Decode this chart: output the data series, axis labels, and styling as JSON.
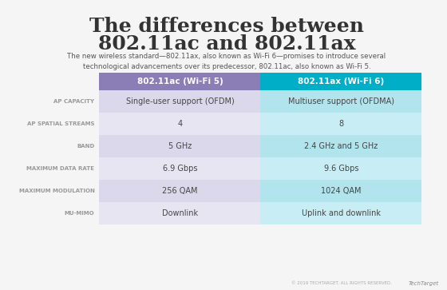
{
  "title_line1": "The differences between",
  "title_line2": "802.11ac and 802.11ax",
  "subtitle": "The new wireless standard—802.11ax, also known as Wi-Fi 6—promises to introduce several\ntechnological advancements over its predecessor, 802.11ac, also known as Wi-Fi 5.",
  "col1_header": "802.11ac (Wi-Fi 5)",
  "col2_header": "802.11ax (Wi-Fi 6)",
  "col1_header_color": "#8b7db5",
  "col2_header_color": "#00aec7",
  "row_labels": [
    "AP CAPACITY",
    "AP SPATIAL STREAMS",
    "BAND",
    "MAXIMUM DATA RATE",
    "MAXIMUM MODULATION",
    "MU-MIMO"
  ],
  "col1_values": [
    "Single-user support (OFDM)",
    "4",
    "5 GHz",
    "6.9 Gbps",
    "256 QAM",
    "Downlink"
  ],
  "col2_values": [
    "Multiuser support (OFDMA)",
    "8",
    "2.4 GHz and 5 GHz",
    "9.6 Gbps",
    "1024 QAM",
    "Uplink and downlink"
  ],
  "col1_bg_even": "#dcd8ec",
  "col1_bg_odd": "#e8e5f3",
  "col2_bg_even": "#b2e4ed",
  "col2_bg_odd": "#c8edf4",
  "label_color": "#999999",
  "value_color": "#444444",
  "bg_color": "#f5f5f5",
  "footer_text": "© 2019 TECHTARGET. ALL RIGHTS RESERVED.",
  "title_color": "#333333"
}
